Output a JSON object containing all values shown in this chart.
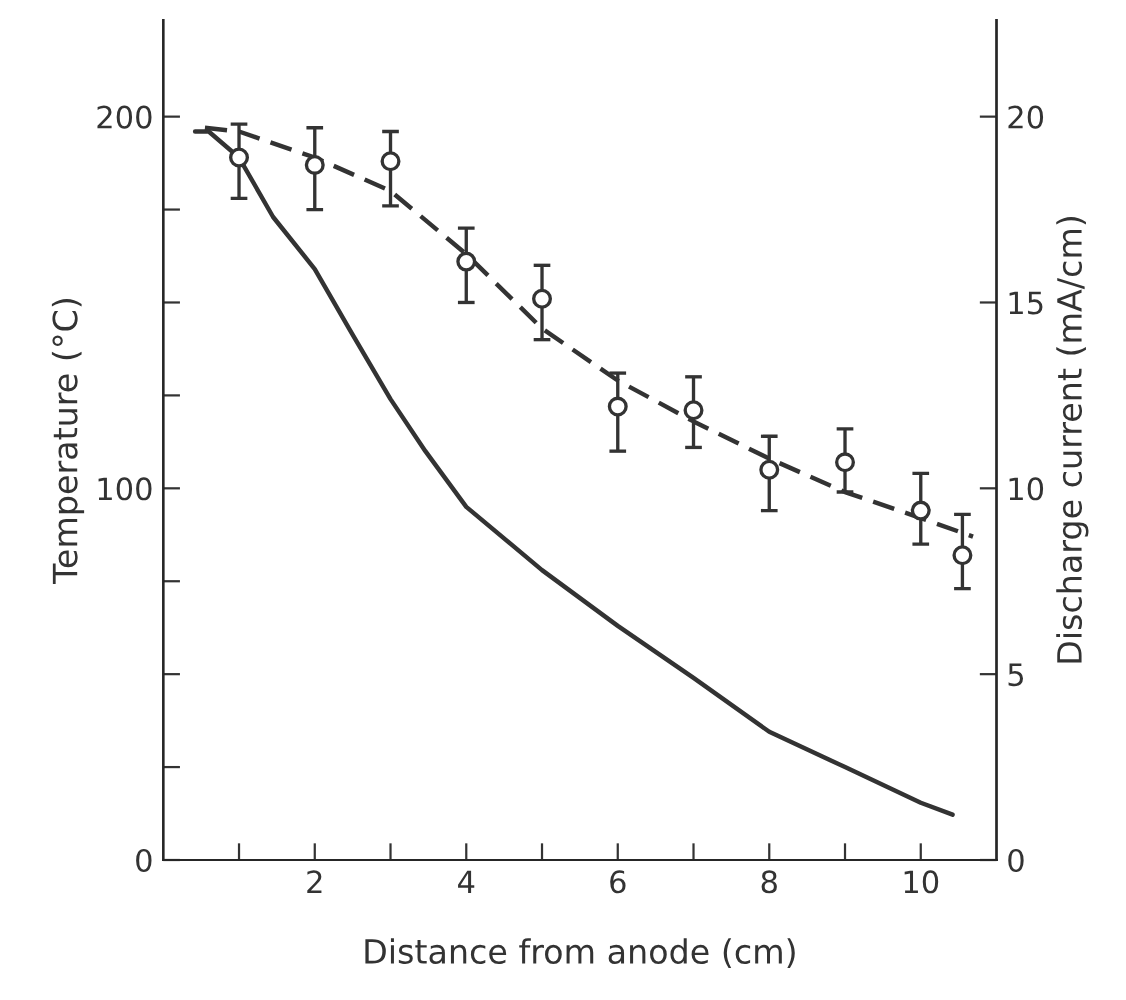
{
  "chart_data": {
    "type": "line",
    "xlabel": "Distance from anode (cm)",
    "ylabel": "Temperature (°C)",
    "y2label": "Discharge current (mA/cm)",
    "xlim": [
      0,
      11
    ],
    "xticks": [
      {
        "value": 1,
        "label": null
      },
      2,
      {
        "value": 3,
        "label": null
      },
      4,
      {
        "value": 5,
        "label": null
      },
      6,
      {
        "value": 7,
        "label": null
      },
      8,
      {
        "value": 9,
        "label": null
      },
      10
    ],
    "ylim": [
      0,
      226
    ],
    "yticks": [
      0,
      {
        "value": 25,
        "label": null
      },
      {
        "value": 50,
        "label": null
      },
      {
        "value": 75,
        "label": null
      },
      100,
      {
        "value": 125,
        "label": null
      },
      {
        "value": 150,
        "label": null
      },
      {
        "value": 175,
        "label": null
      },
      200
    ],
    "y2lim": [
      0,
      22.6
    ],
    "y2ticks": [
      0,
      5,
      10,
      15,
      20
    ],
    "grid": false,
    "legend": false,
    "series": [
      {
        "axis": "y",
        "color": "#333333",
        "line_style": "solid",
        "marker": "none",
        "x": [
          0.42,
          0.6,
          1,
          1.45,
          2,
          2.48,
          3,
          3.46,
          4,
          5,
          6,
          7,
          8,
          9,
          10,
          10.42
        ],
        "values": [
          196,
          196,
          189,
          173,
          159,
          142,
          124,
          110,
          95,
          78,
          63,
          49,
          34.5,
          25,
          15.4,
          12.2
        ]
      },
      {
        "type": "line",
        "axis": "y2",
        "color": "#333333",
        "line_style": "dashed",
        "marker": "none",
        "x": [
          0.55,
          1,
          2,
          3,
          4,
          5,
          6,
          7,
          8,
          9,
          10,
          10.69
        ],
        "values": [
          19.7,
          19.6,
          18.9,
          18.0,
          16.3,
          14.3,
          12.9,
          11.8,
          10.8,
          9.9,
          9.2,
          8.7
        ]
      },
      {
        "type": "scatter",
        "axis": "y2",
        "color": "#333333",
        "marker": "circle",
        "x": [
          1,
          2,
          3,
          4,
          5,
          6,
          7,
          8,
          9,
          10,
          10.55
        ],
        "values": [
          18.9,
          18.7,
          18.8,
          16.1,
          15.1,
          12.2,
          12.1,
          10.5,
          10.7,
          9.4,
          8.2
        ],
        "errors": [
          [
            17.8,
            19.8
          ],
          [
            17.5,
            19.7
          ],
          [
            17.6,
            19.6
          ],
          [
            15.0,
            17.0
          ],
          [
            14.0,
            16.0
          ],
          [
            11.0,
            13.1
          ],
          [
            11.1,
            13.0
          ],
          [
            9.4,
            11.4
          ],
          [
            9.9,
            11.6
          ],
          [
            8.5,
            10.4
          ],
          [
            7.3,
            9.3
          ]
        ]
      }
    ]
  }
}
